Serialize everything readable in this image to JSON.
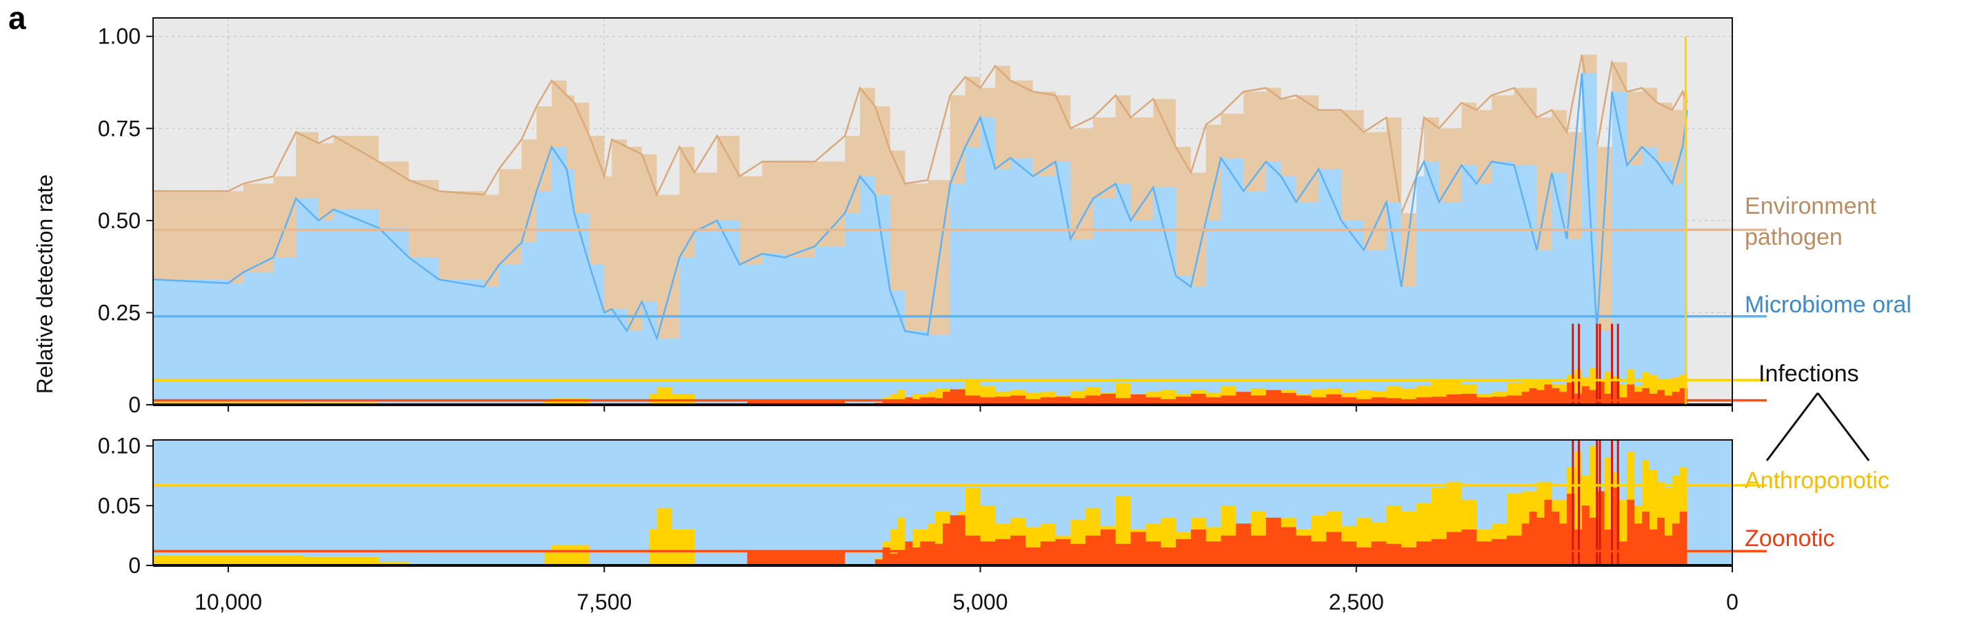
{
  "panel_label": "a",
  "chart_data": {
    "type": "area",
    "ylabel": "Relative detection rate",
    "x_reversed": true,
    "xlim": [
      10500,
      0
    ],
    "x_ticks": [
      10000,
      7500,
      5000,
      2500,
      0
    ],
    "x_tick_labels": [
      "10,000",
      "7,500",
      "5,000",
      "2,500",
      "0"
    ],
    "top_panel": {
      "ylim": [
        0,
        1.05
      ],
      "y_ticks": [
        0,
        0.25,
        0.5,
        0.75,
        1.0
      ],
      "y_tick_labels": [
        "0",
        "0.25",
        "0.50",
        "0.75",
        "1.00"
      ],
      "grid": true
    },
    "bottom_panel": {
      "ylim": [
        0,
        0.105
      ],
      "y_ticks": [
        0,
        0.05,
        0.1
      ],
      "y_tick_labels": [
        "0",
        "0.05",
        "0.10"
      ],
      "grid": true
    },
    "background_color": "#e9e9e9",
    "series": [
      {
        "name": "Environment pathogen",
        "color": "#e8c9a6",
        "line_color": "#d9a97c",
        "mean": 0.475,
        "x": [
          10500,
          10000,
          9900,
          9700,
          9550,
          9400,
          9300,
          9000,
          8800,
          8600,
          8300,
          8200,
          8050,
          7950,
          7850,
          7750,
          7700,
          7600,
          7500,
          7450,
          7350,
          7250,
          7150,
          7000,
          6900,
          6750,
          6600,
          6450,
          6300,
          6100,
          5900,
          5800,
          5700,
          5600,
          5500,
          5350,
          5200,
          5100,
          5000,
          4900,
          4800,
          4650,
          4500,
          4400,
          4250,
          4100,
          4000,
          3850,
          3700,
          3600,
          3500,
          3400,
          3250,
          3100,
          3000,
          2900,
          2750,
          2600,
          2450,
          2300,
          2200,
          2100,
          2050,
          1950,
          1800,
          1700,
          1600,
          1450,
          1300,
          1200,
          1100,
          1000,
          900,
          800,
          700,
          600,
          500,
          400,
          330,
          300
        ],
        "values": [
          0.58,
          0.58,
          0.6,
          0.62,
          0.74,
          0.71,
          0.73,
          0.66,
          0.61,
          0.58,
          0.57,
          0.64,
          0.72,
          0.81,
          0.88,
          0.84,
          0.82,
          0.73,
          0.62,
          0.72,
          0.7,
          0.68,
          0.57,
          0.7,
          0.63,
          0.73,
          0.62,
          0.66,
          0.66,
          0.66,
          0.73,
          0.86,
          0.81,
          0.69,
          0.6,
          0.61,
          0.84,
          0.89,
          0.86,
          0.92,
          0.88,
          0.85,
          0.84,
          0.75,
          0.78,
          0.84,
          0.78,
          0.83,
          0.7,
          0.63,
          0.76,
          0.79,
          0.85,
          0.86,
          0.83,
          0.84,
          0.8,
          0.8,
          0.74,
          0.78,
          0.52,
          0.62,
          0.78,
          0.75,
          0.82,
          0.8,
          0.84,
          0.86,
          0.78,
          0.8,
          0.74,
          0.95,
          0.7,
          0.93,
          0.85,
          0.86,
          0.82,
          0.8,
          0.85,
          0.82
        ]
      },
      {
        "name": "Microbiome oral",
        "color": "#a7d6fb",
        "line_color": "#5db2f5",
        "mean": 0.24,
        "x": [
          10500,
          10000,
          9900,
          9700,
          9550,
          9400,
          9300,
          9000,
          8800,
          8600,
          8300,
          8200,
          8050,
          7950,
          7850,
          7750,
          7700,
          7600,
          7500,
          7450,
          7350,
          7250,
          7150,
          7000,
          6900,
          6750,
          6600,
          6450,
          6300,
          6100,
          5900,
          5800,
          5700,
          5600,
          5500,
          5350,
          5200,
          5100,
          5000,
          4900,
          4800,
          4650,
          4500,
          4400,
          4250,
          4100,
          4000,
          3850,
          3700,
          3600,
          3500,
          3400,
          3250,
          3100,
          3000,
          2900,
          2750,
          2600,
          2450,
          2300,
          2200,
          2100,
          2050,
          1950,
          1800,
          1700,
          1600,
          1450,
          1300,
          1200,
          1100,
          1000,
          900,
          800,
          700,
          600,
          500,
          400,
          330,
          300
        ],
        "values": [
          0.34,
          0.33,
          0.36,
          0.4,
          0.56,
          0.5,
          0.53,
          0.48,
          0.4,
          0.34,
          0.32,
          0.38,
          0.44,
          0.58,
          0.7,
          0.64,
          0.52,
          0.38,
          0.25,
          0.26,
          0.2,
          0.28,
          0.18,
          0.4,
          0.47,
          0.5,
          0.38,
          0.41,
          0.4,
          0.43,
          0.52,
          0.62,
          0.57,
          0.31,
          0.2,
          0.19,
          0.6,
          0.7,
          0.78,
          0.64,
          0.67,
          0.62,
          0.66,
          0.45,
          0.56,
          0.6,
          0.5,
          0.59,
          0.35,
          0.32,
          0.5,
          0.67,
          0.58,
          0.66,
          0.62,
          0.55,
          0.64,
          0.5,
          0.42,
          0.55,
          0.32,
          0.62,
          0.66,
          0.55,
          0.65,
          0.6,
          0.66,
          0.65,
          0.42,
          0.63,
          0.45,
          0.9,
          0.2,
          0.85,
          0.65,
          0.7,
          0.66,
          0.6,
          0.7,
          0.8
        ]
      },
      {
        "name": "Anthroponotic",
        "color": "#ffd200",
        "mean": 0.067,
        "x": [
          10500,
          10000,
          9500,
          9000,
          8800,
          8000,
          7900,
          7850,
          7700,
          7600,
          7450,
          7300,
          7200,
          7150,
          7050,
          6900,
          6700,
          6500,
          6200,
          6000,
          5800,
          5700,
          5650,
          5600,
          5550,
          5500,
          5450,
          5350,
          5300,
          5200,
          5150,
          5100,
          5000,
          4900,
          4800,
          4700,
          4600,
          4500,
          4400,
          4300,
          4200,
          4100,
          4000,
          3900,
          3800,
          3700,
          3600,
          3500,
          3400,
          3300,
          3200,
          3100,
          3000,
          2900,
          2800,
          2700,
          2600,
          2500,
          2400,
          2300,
          2200,
          2100,
          2000,
          1900,
          1800,
          1700,
          1600,
          1500,
          1400,
          1300,
          1200,
          1100,
          1050,
          1000,
          950,
          900,
          850,
          800,
          750,
          700,
          650,
          600,
          550,
          500,
          450,
          400,
          350,
          300
        ],
        "values": [
          0.008,
          0.008,
          0.007,
          0.003,
          0.0,
          0.0,
          0.012,
          0.017,
          0.017,
          0.0,
          0.0,
          0.0,
          0.03,
          0.048,
          0.03,
          0.0,
          0.0,
          0.0,
          0.0,
          0.0,
          0.0,
          0.006,
          0.02,
          0.03,
          0.04,
          0.02,
          0.03,
          0.035,
          0.045,
          0.032,
          0.045,
          0.065,
          0.05,
          0.035,
          0.04,
          0.032,
          0.035,
          0.025,
          0.038,
          0.048,
          0.033,
          0.058,
          0.03,
          0.035,
          0.04,
          0.028,
          0.04,
          0.032,
          0.05,
          0.028,
          0.045,
          0.035,
          0.04,
          0.03,
          0.042,
          0.045,
          0.033,
          0.04,
          0.036,
          0.05,
          0.045,
          0.052,
          0.065,
          0.07,
          0.055,
          0.03,
          0.035,
          0.06,
          0.062,
          0.07,
          0.055,
          0.082,
          0.095,
          0.075,
          0.1,
          0.06,
          0.09,
          0.078,
          0.055,
          0.095,
          0.05,
          0.088,
          0.08,
          0.07,
          0.065,
          0.075,
          0.082,
          0.102
        ]
      },
      {
        "name": "Zoonotic",
        "color": "#ff4e0f",
        "mean": 0.012,
        "x": [
          10500,
          7200,
          7100,
          6600,
          6550,
          6000,
          5900,
          5750,
          5700,
          5650,
          5600,
          5550,
          5500,
          5450,
          5400,
          5300,
          5250,
          5200,
          5100,
          5000,
          4900,
          4800,
          4700,
          4600,
          4500,
          4400,
          4300,
          4200,
          4100,
          4000,
          3900,
          3800,
          3700,
          3600,
          3500,
          3400,
          3300,
          3200,
          3100,
          3000,
          2900,
          2800,
          2700,
          2600,
          2500,
          2400,
          2300,
          2200,
          2100,
          2000,
          1900,
          1800,
          1700,
          1600,
          1500,
          1400,
          1350,
          1300,
          1250,
          1200,
          1150,
          1100,
          1050,
          1000,
          950,
          900,
          850,
          800,
          750,
          700,
          650,
          600,
          550,
          500,
          450,
          400,
          350,
          300
        ],
        "values": [
          0.0,
          0.0,
          0.0,
          0.0,
          0.012,
          0.012,
          0.0,
          0.0,
          0.005,
          0.015,
          0.01,
          0.012,
          0.02,
          0.015,
          0.02,
          0.018,
          0.035,
          0.042,
          0.025,
          0.02,
          0.022,
          0.025,
          0.015,
          0.02,
          0.022,
          0.018,
          0.025,
          0.03,
          0.018,
          0.028,
          0.02,
          0.015,
          0.022,
          0.03,
          0.02,
          0.025,
          0.035,
          0.025,
          0.04,
          0.032,
          0.025,
          0.02,
          0.028,
          0.02,
          0.015,
          0.02,
          0.018,
          0.015,
          0.02,
          0.022,
          0.028,
          0.03,
          0.02,
          0.022,
          0.025,
          0.035,
          0.045,
          0.04,
          0.055,
          0.045,
          0.035,
          0.06,
          0.03,
          0.05,
          0.04,
          0.062,
          0.03,
          0.065,
          0.02,
          0.055,
          0.035,
          0.045,
          0.03,
          0.04,
          0.025,
          0.035,
          0.045,
          0.06
        ]
      }
    ],
    "mean_line_colors": {
      "Environment pathogen": "#e5b894",
      "Microbiome oral": "#5db2f5",
      "Anthroponotic": "#ffd200",
      "Zoonotic": "#ff4e0f"
    },
    "spike_lines": [
      1060,
      1020,
      900,
      880,
      800,
      760
    ],
    "spike_color": "#d21a0f",
    "vertical_marker_x": 310,
    "vertical_marker_color": "#ffd200",
    "legend": {
      "environment": [
        "Environment",
        "pathogen"
      ],
      "microbiome": "Microbiome oral",
      "infections": "Infections",
      "anthroponotic": "Anthroponotic",
      "zoonotic": "Zoonotic",
      "colors": {
        "environment": "#b88d63",
        "microbiome": "#3b89c9",
        "infections": "#111111",
        "anthroponotic": "#f2bf00",
        "zoonotic": "#ee3d12"
      }
    }
  }
}
